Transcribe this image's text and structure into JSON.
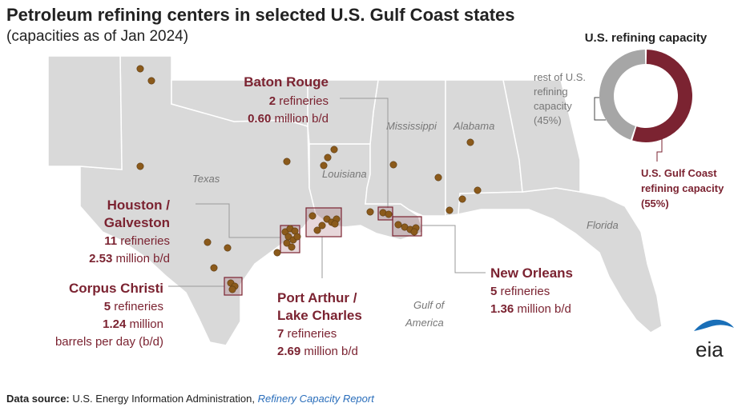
{
  "title": "Petroleum refining centers in selected U.S. Gulf Coast states",
  "subtitle": "(capacities as of Jan 2024)",
  "source": {
    "label": "Data source:",
    "org": "U.S. Energy Information Administration,",
    "report": "Refinery Capacity Report"
  },
  "logo": "eia",
  "colors": {
    "accent": "#7b2331",
    "land": "#d9d9d9",
    "dot": "#8b5a1b",
    "rest": "#a6a6a6",
    "leader": "#9a9a9a"
  },
  "map_labels": {
    "texas": "Texas",
    "louisiana": "Louisiana",
    "mississippi": "Mississippi",
    "alabama": "Alabama",
    "florida": "Florida",
    "gulf_line1": "Gulf of",
    "gulf_line2": "America"
  },
  "centers": {
    "baton_rouge": {
      "name_line1": "Baton Rouge",
      "count": "2",
      "count_unit": "refineries",
      "capacity": "0.60",
      "capacity_unit": "million b/d"
    },
    "houston": {
      "name_line1": "Houston /",
      "name_line2": "Galveston",
      "count": "11",
      "count_unit": "refineries",
      "capacity": "2.53",
      "capacity_unit": "million b/d"
    },
    "corpus": {
      "name_line1": "Corpus Christi",
      "count": "5",
      "count_unit": "refineries",
      "capacity": "1.24",
      "capacity_unit": "million",
      "capacity_unit2": "barrels per day (b/d)"
    },
    "port_arthur": {
      "name_line1": "Port Arthur /",
      "name_line2": "Lake Charles",
      "count": "7",
      "count_unit": "refineries",
      "capacity": "2.69",
      "capacity_unit": "million b/d"
    },
    "new_orleans": {
      "name_line1": "New Orleans",
      "count": "5",
      "count_unit": "refineries",
      "capacity": "1.36",
      "capacity_unit": "million b/d"
    }
  },
  "donut": {
    "title": "U.S. refining capacity",
    "gulf_label_line1": "U.S. Gulf Coast",
    "gulf_label_line2": "refining capacity",
    "gulf_pct_text": "(55%)",
    "rest_label_line1": "rest of U.S.",
    "rest_label_line2": "refining",
    "rest_label_line3": "capacity",
    "rest_pct_text": "(45%)",
    "gulf_share": 55,
    "rest_share": 45
  }
}
